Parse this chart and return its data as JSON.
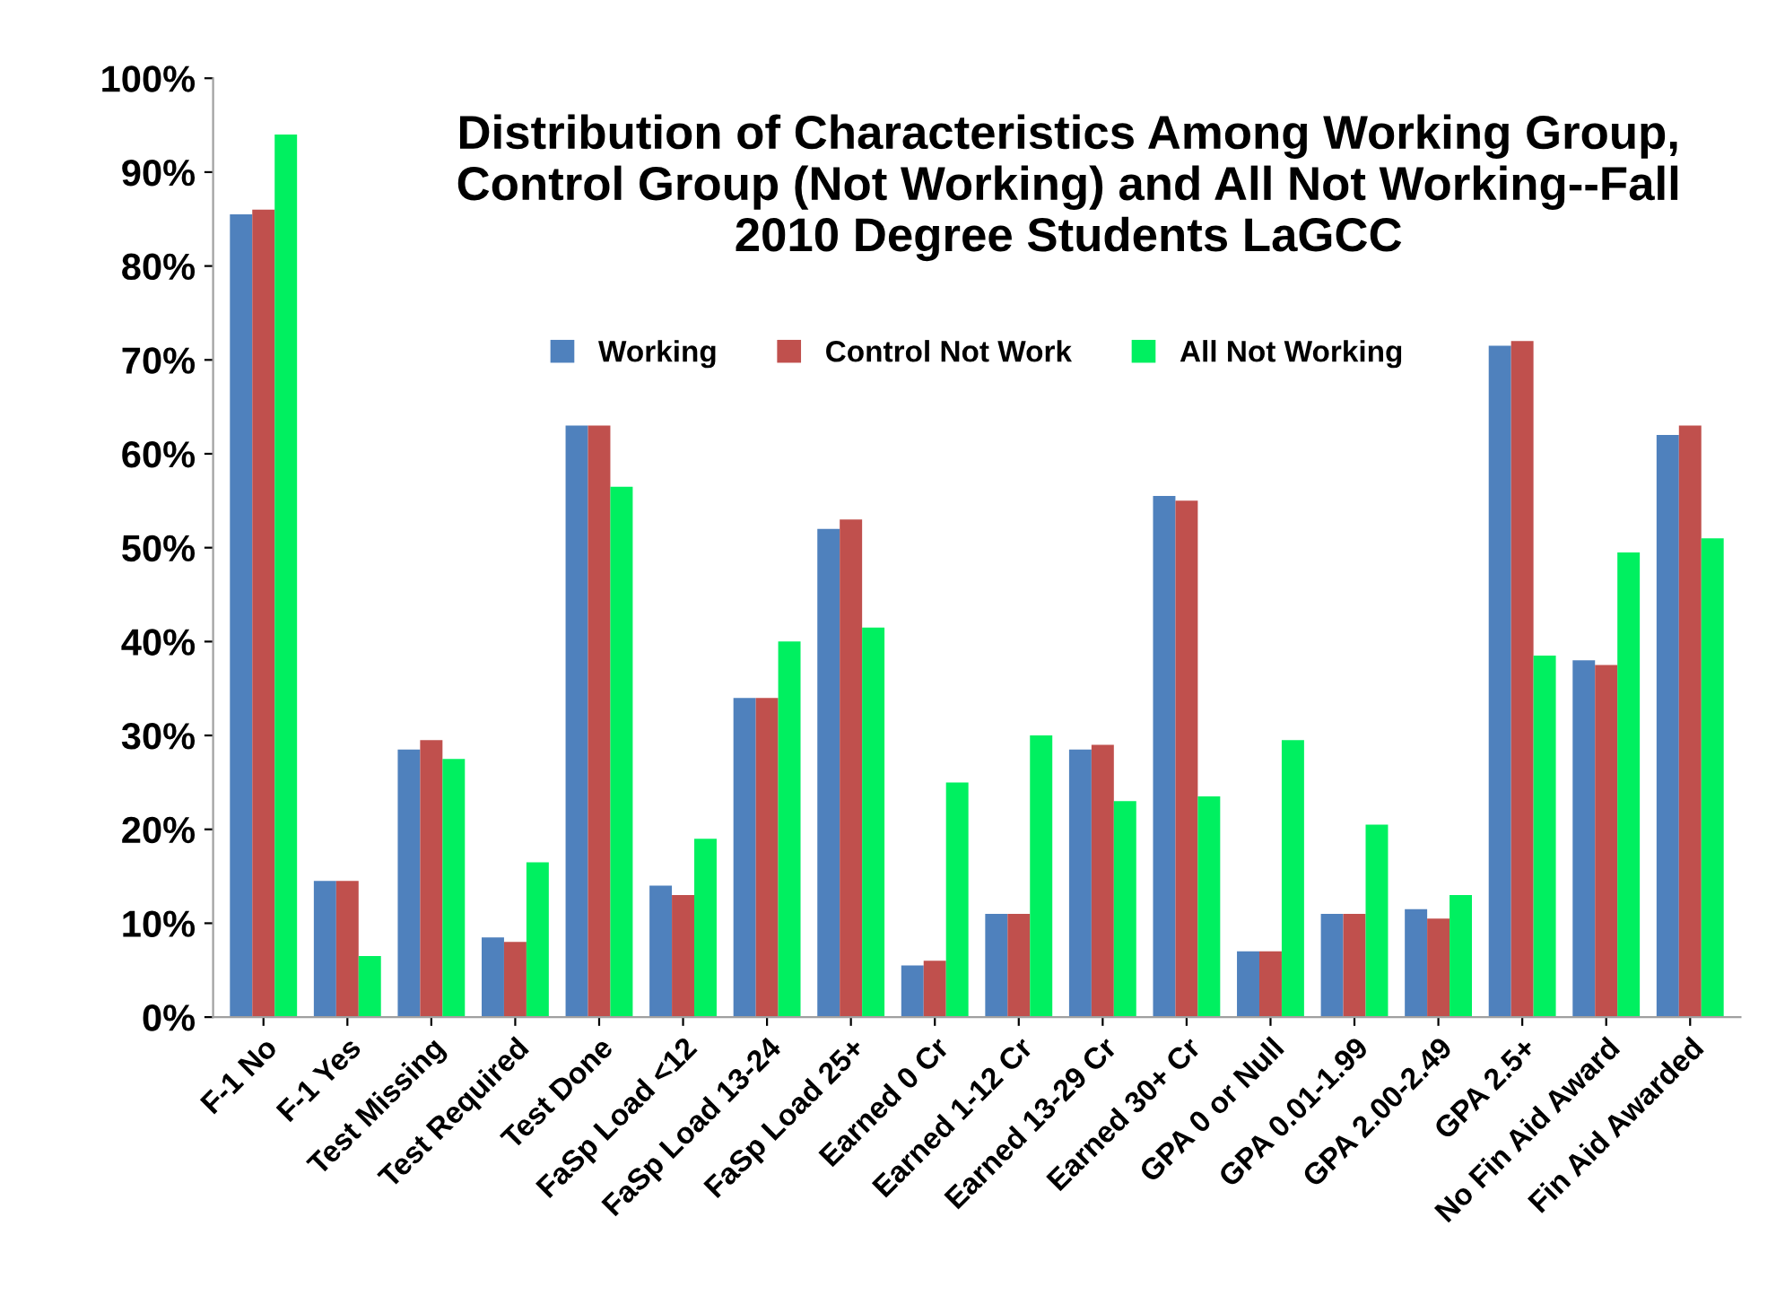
{
  "chart_data": {
    "type": "bar",
    "title": "Distribution of Characteristics Among Working Group,\nControl Group (Not Working) and All Not Working--Fall\n2010 Degree Students LaGCC",
    "categories": [
      "F-1 No",
      "F-1 Yes",
      "Test Missing",
      "Test Required",
      "Test Done",
      "FaSp Load <12",
      "FaSp Load 13-24",
      "FaSp Load 25+",
      "Earned 0 Cr",
      "Earned 1-12 Cr",
      "Earned 13-29 Cr",
      "Earned 30+ Cr",
      "GPA 0 or Null",
      "GPA 0.01-1.99",
      "GPA 2.00-2.49",
      "GPA 2.5+",
      "No Fin Aid Award",
      "Fin Aid Awarded"
    ],
    "series": [
      {
        "name": "Working",
        "color": "#4f81bd",
        "values": [
          85.5,
          14.5,
          28.5,
          8.5,
          63,
          14,
          34,
          52,
          5.5,
          11,
          28.5,
          55.5,
          7,
          11,
          11.5,
          71.5,
          38,
          62
        ]
      },
      {
        "name": "Control Not Work",
        "color": "#c0504d",
        "values": [
          86,
          14.5,
          29.5,
          8,
          63,
          13,
          34,
          53,
          6,
          11,
          29,
          55,
          7,
          11,
          10.5,
          72,
          37.5,
          63
        ]
      },
      {
        "name": "All Not Working",
        "color": "#00f060",
        "values": [
          94,
          6.5,
          27.5,
          16.5,
          56.5,
          19,
          40,
          41.5,
          25,
          30,
          23,
          23.5,
          29.5,
          20.5,
          13,
          38.5,
          49.5,
          51
        ]
      }
    ],
    "ylim": [
      0,
      100
    ],
    "yticks": [
      {
        "value": 0,
        "label": "0%"
      },
      {
        "value": 10,
        "label": "10%"
      },
      {
        "value": 20,
        "label": "20%"
      },
      {
        "value": 30,
        "label": "30%"
      },
      {
        "value": 40,
        "label": "40%"
      },
      {
        "value": 50,
        "label": "50%"
      },
      {
        "value": 60,
        "label": "60%"
      },
      {
        "value": 70,
        "label": "70%"
      },
      {
        "value": 80,
        "label": "80%"
      },
      {
        "value": 90,
        "label": "90%"
      },
      {
        "value": 100,
        "label": "100%"
      }
    ],
    "grid": false,
    "legend": "top"
  }
}
